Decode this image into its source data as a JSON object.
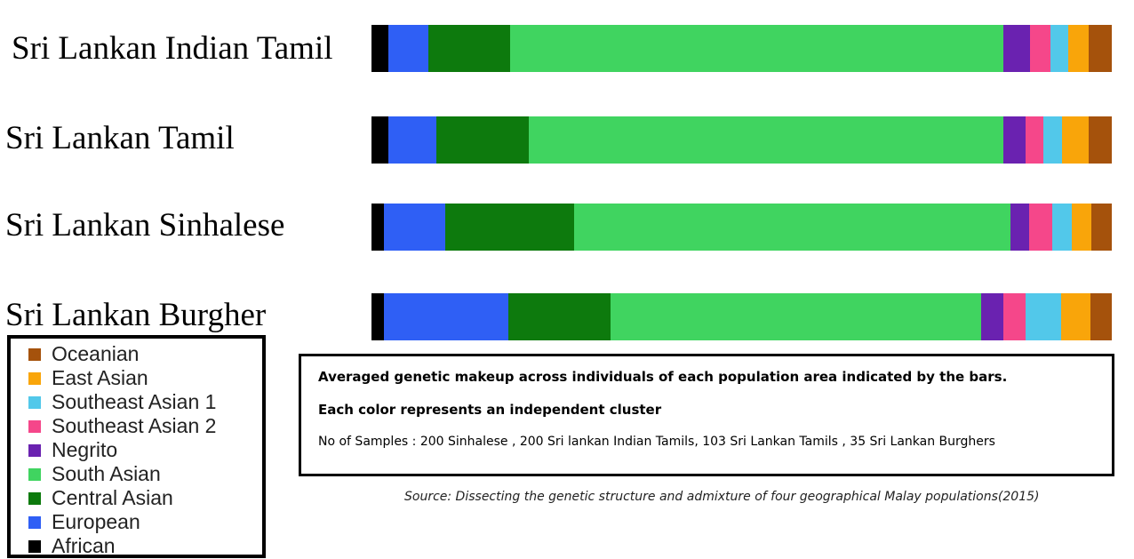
{
  "chart_data": {
    "type": "bar",
    "orientation": "horizontal-stacked",
    "unit": "percent (estimated)",
    "categories": [
      "Sri Lankan Indian Tamil",
      "Sri Lankan Tamil",
      "Sri Lankan Sinhalese",
      "Sri Lankan Burgher"
    ],
    "series": [
      {
        "name": "African",
        "color": "#000000",
        "values": [
          2.3,
          2.3,
          1.7,
          1.7
        ]
      },
      {
        "name": "European",
        "color": "#2f5ff5",
        "values": [
          5.4,
          6.5,
          8.3,
          16.8
        ]
      },
      {
        "name": "Central Asian",
        "color": "#0d7a0d",
        "values": [
          11.0,
          12.5,
          17.3,
          13.8
        ]
      },
      {
        "name": "South Asian",
        "color": "#40d460",
        "values": [
          66.6,
          64.1,
          58.9,
          50.1
        ]
      },
      {
        "name": "Negrito",
        "color": "#6a22b0",
        "values": [
          3.6,
          2.9,
          2.5,
          3.0
        ]
      },
      {
        "name": "Southeast Asian 2",
        "color": "#f5478a",
        "values": [
          2.8,
          2.4,
          3.2,
          3.1
        ]
      },
      {
        "name": "Southeast Asian 1",
        "color": "#52c8ea",
        "values": [
          2.4,
          2.6,
          2.6,
          4.7
        ]
      },
      {
        "name": "East Asian",
        "color": "#f9a50a",
        "values": [
          2.8,
          3.6,
          2.6,
          4.0
        ]
      },
      {
        "name": "Oceanian",
        "color": "#a5520c",
        "values": [
          3.1,
          3.1,
          2.8,
          2.9
        ]
      }
    ],
    "legend": [
      "Oceanian",
      "East Asian",
      "Southeast Asian 1",
      "Southeast Asian 2",
      "Negrito",
      "South Asian",
      "Central Asian",
      "European",
      "African"
    ],
    "legend_placement": "bottom-left"
  },
  "info": {
    "line1": "Averaged genetic makeup across individuals of each population area indicated by the bars.",
    "line2": "Each color represents an independent cluster",
    "line3": "No of Samples : 200 Sinhalese , 200 Sri lankan Indian Tamils, 103 Sri Lankan Tamils , 35 Sri Lankan Burghers"
  },
  "source": "Source: Dissecting the genetic structure and admixture of four geographical Malay populations(2015)"
}
